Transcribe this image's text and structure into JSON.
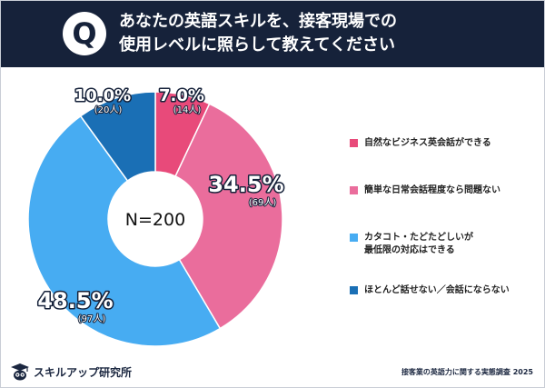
{
  "header": {
    "q_label": "Q",
    "title_line1": "あなたの英語スキルを、接客現場での",
    "title_line2": "使用レベルに照らして教えてください"
  },
  "chart_data": {
    "type": "pie",
    "style": "donut",
    "center_label": "N=200",
    "slices": [
      {
        "label": "自然なビジネス英会話ができる",
        "lines": [
          "自然なビジネス英会話ができる"
        ],
        "percent": 7.0,
        "percent_label": "7.0%",
        "count": 14,
        "count_label": "(14人)",
        "color": "#e84a7a"
      },
      {
        "label": "簡単な日常会話程度なら問題ない",
        "lines": [
          "簡単な日常会話程度なら問題ない"
        ],
        "percent": 34.5,
        "percent_label": "34.5%",
        "count": 69,
        "count_label": "(69人)",
        "color": "#ea6d9c"
      },
      {
        "label": "カタコト・たどたどしいが最低限の対応はできる",
        "lines": [
          "カタコト・たどたどしいが",
          "最低限の対応はできる"
        ],
        "percent": 48.5,
        "percent_label": "48.5%",
        "count": 97,
        "count_label": "(97人)",
        "color": "#47acf2"
      },
      {
        "label": "ほとんど話せない／会話にならない",
        "lines": [
          "ほとんど話せない／会話にならない"
        ],
        "percent": 10.0,
        "percent_label": "10.0%",
        "count": 20,
        "count_label": "(20人)",
        "color": "#1a6fb5"
      }
    ],
    "legend_position": "right"
  },
  "footer": {
    "brand": "スキルアップ研究所",
    "brand_icon": "graduation-cap-owl-icon",
    "survey": "接客業の英語力に関する実態調査 2025"
  }
}
